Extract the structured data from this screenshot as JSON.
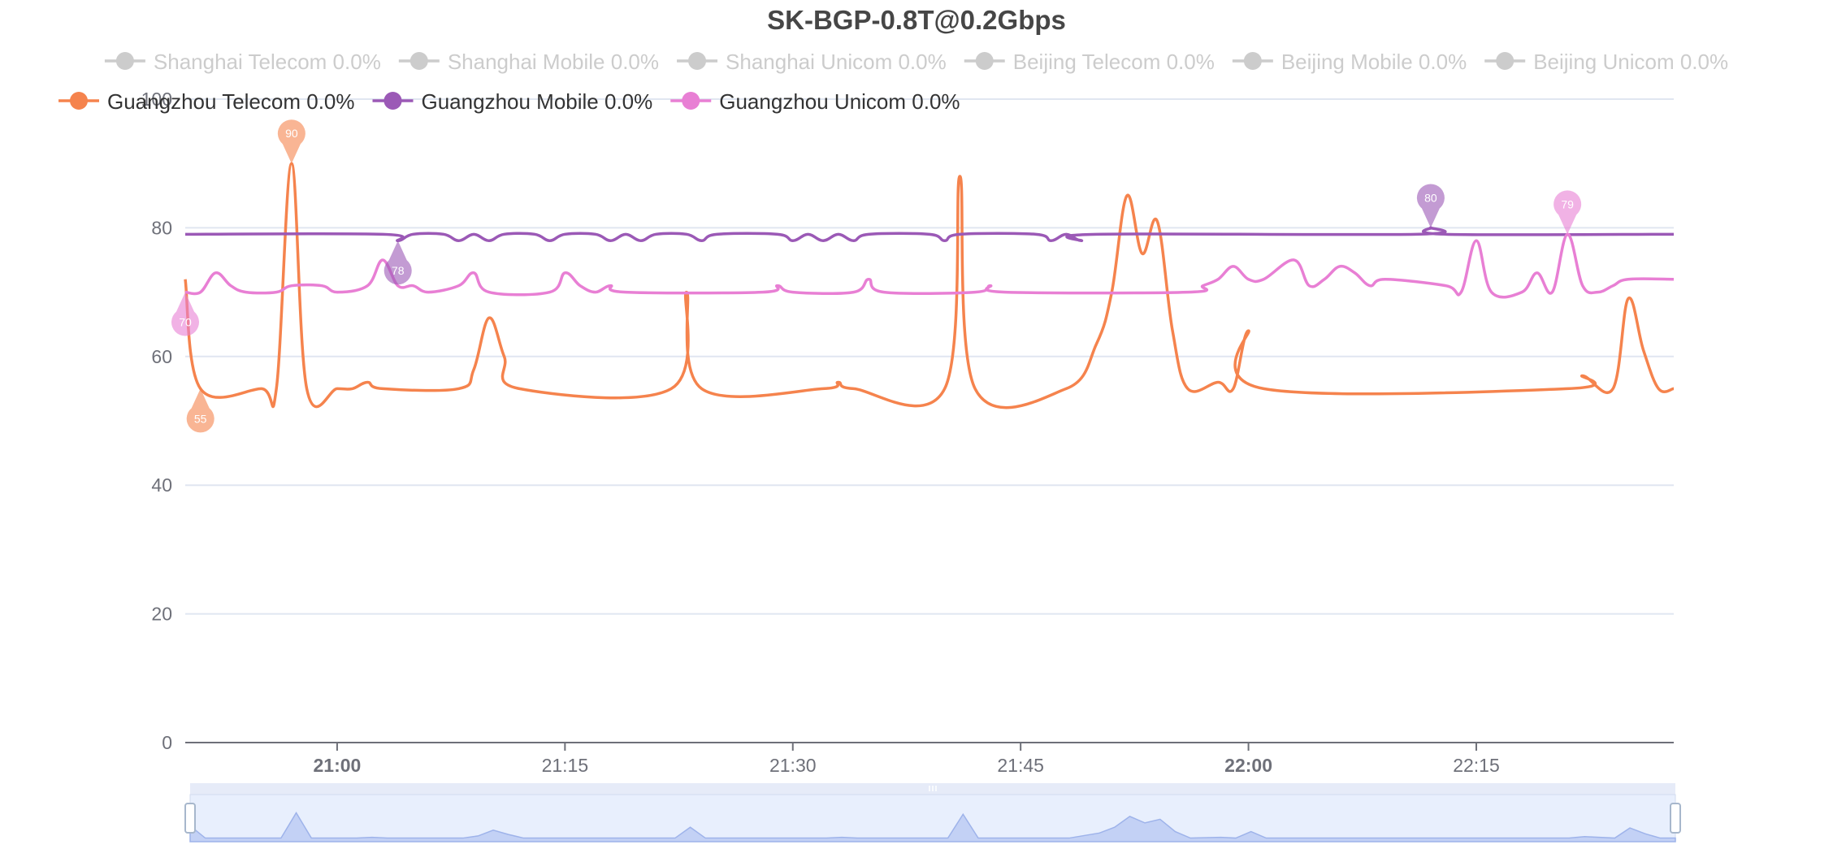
{
  "chart_data": {
    "type": "line",
    "title": "SK-BGP-0.8T@0.2Gbps",
    "xlabel": "",
    "ylabel": "",
    "ylim": [
      0,
      100
    ],
    "yticks": [
      0,
      20,
      40,
      60,
      80,
      100
    ],
    "x_unit": "minutes",
    "xlim": [
      "20:50",
      "22:28"
    ],
    "xticks": [
      {
        "t": "21:00",
        "label": "21:00",
        "bold": true
      },
      {
        "t": "21:15",
        "label": "21:15",
        "bold": false
      },
      {
        "t": "21:30",
        "label": "21:30",
        "bold": false
      },
      {
        "t": "21:45",
        "label": "21:45",
        "bold": false
      },
      {
        "t": "22:00",
        "label": "22:00",
        "bold": true
      },
      {
        "t": "22:15",
        "label": "22:15",
        "bold": false
      }
    ],
    "grid": true,
    "legend_placement": "top",
    "inactive_color": "#cccccc",
    "legend": [
      {
        "label": "Shanghai Telecom 0.0%",
        "active": false
      },
      {
        "label": "Shanghai Mobile 0.0%",
        "active": false
      },
      {
        "label": "Shanghai Unicom 0.0%",
        "active": false
      },
      {
        "label": "Beijing Telecom 0.0%",
        "active": false
      },
      {
        "label": "Beijing Mobile 0.0%",
        "active": false
      },
      {
        "label": "Beijing Unicom 0.0%",
        "active": false
      },
      {
        "label": "Guangzhou Telecom 0.0%",
        "active": true,
        "color": "#f5834d"
      },
      {
        "label": "Guangzhou Mobile 0.0%",
        "active": true,
        "color": "#9b59b6"
      },
      {
        "label": "Guangzhou Unicom 0.0%",
        "active": true,
        "color": "#e87fd4"
      }
    ],
    "series": [
      {
        "name": "Guangzhou Telecom 0.0%",
        "color": "#f5834d",
        "points": [
          [
            "20:50",
            72
          ],
          [
            "20:51",
            55
          ],
          [
            "20:55",
            55
          ],
          [
            "20:56",
            55
          ],
          [
            "20:57",
            90
          ],
          [
            "20:58",
            55
          ],
          [
            "21:00",
            55
          ],
          [
            "21:01",
            55
          ],
          [
            "21:02",
            56
          ],
          [
            "21:03",
            55
          ],
          [
            "21:08",
            55
          ],
          [
            "21:09",
            58
          ],
          [
            "21:10",
            66
          ],
          [
            "21:11",
            60
          ],
          [
            "21:12",
            55
          ],
          [
            "21:22",
            55
          ],
          [
            "21:23",
            70
          ],
          [
            "21:24",
            55
          ],
          [
            "21:32",
            55
          ],
          [
            "21:33",
            56
          ],
          [
            "21:34",
            55
          ],
          [
            "21:40",
            55
          ],
          [
            "21:41",
            88
          ],
          [
            "21:42",
            55
          ],
          [
            "21:48",
            55
          ],
          [
            "21:50",
            62
          ],
          [
            "21:51",
            70
          ],
          [
            "21:52",
            85
          ],
          [
            "21:53",
            76
          ],
          [
            "21:54",
            81
          ],
          [
            "21:55",
            64
          ],
          [
            "21:56",
            55
          ],
          [
            "21:58",
            56
          ],
          [
            "21:59",
            55
          ],
          [
            "22:00",
            64
          ],
          [
            "22:01",
            55
          ],
          [
            "22:21",
            55
          ],
          [
            "22:22",
            57
          ],
          [
            "22:24",
            55
          ],
          [
            "22:25",
            69
          ],
          [
            "22:26",
            61
          ],
          [
            "22:27",
            55
          ],
          [
            "22:28",
            55
          ]
        ],
        "markers": [
          {
            "t": "20:57",
            "value": 90,
            "kind": "max"
          },
          {
            "t": "20:51",
            "value": 55,
            "kind": "min"
          }
        ]
      },
      {
        "name": "Guangzhou Mobile 0.0%",
        "color": "#9b59b6",
        "points": [
          [
            "20:50",
            79
          ],
          [
            "21:03",
            79
          ],
          [
            "21:04",
            78
          ],
          [
            "21:05",
            79
          ],
          [
            "21:07",
            79
          ],
          [
            "21:08",
            78
          ],
          [
            "21:09",
            79
          ],
          [
            "21:10",
            78
          ],
          [
            "21:11",
            79
          ],
          [
            "21:13",
            79
          ],
          [
            "21:14",
            78
          ],
          [
            "21:15",
            79
          ],
          [
            "21:17",
            79
          ],
          [
            "21:18",
            78
          ],
          [
            "21:19",
            79
          ],
          [
            "21:20",
            78
          ],
          [
            "21:21",
            79
          ],
          [
            "21:23",
            79
          ],
          [
            "21:24",
            78
          ],
          [
            "21:25",
            79
          ],
          [
            "21:29",
            79
          ],
          [
            "21:30",
            78
          ],
          [
            "21:31",
            79
          ],
          [
            "21:32",
            78
          ],
          [
            "21:33",
            79
          ],
          [
            "21:34",
            78
          ],
          [
            "21:35",
            79
          ],
          [
            "21:39",
            79
          ],
          [
            "21:40",
            78
          ],
          [
            "21:41",
            79
          ],
          [
            "21:46",
            79
          ],
          [
            "21:47",
            78
          ],
          [
            "21:48",
            79
          ],
          [
            "21:49",
            78
          ],
          [
            "21:50",
            79
          ],
          [
            "22:11",
            79
          ],
          [
            "22:12",
            80
          ],
          [
            "22:13",
            79
          ],
          [
            "22:28",
            79
          ]
        ],
        "markers": [
          {
            "t": "22:12",
            "value": 80,
            "kind": "max"
          },
          {
            "t": "21:04",
            "value": 78,
            "kind": "min"
          }
        ]
      },
      {
        "name": "Guangzhou Unicom 0.0%",
        "color": "#e87fd4",
        "points": [
          [
            "20:50",
            70
          ],
          [
            "20:51",
            70
          ],
          [
            "20:52",
            73
          ],
          [
            "20:53",
            71
          ],
          [
            "20:54",
            70
          ],
          [
            "20:56",
            70
          ],
          [
            "20:57",
            71
          ],
          [
            "20:59",
            71
          ],
          [
            "21:00",
            70
          ],
          [
            "21:02",
            71
          ],
          [
            "21:03",
            75
          ],
          [
            "21:04",
            71
          ],
          [
            "21:05",
            71
          ],
          [
            "21:06",
            70
          ],
          [
            "21:08",
            71
          ],
          [
            "21:09",
            73
          ],
          [
            "21:10",
            70
          ],
          [
            "21:14",
            70
          ],
          [
            "21:15",
            73
          ],
          [
            "21:16",
            71
          ],
          [
            "21:17",
            70
          ],
          [
            "21:18",
            71
          ],
          [
            "21:19",
            70
          ],
          [
            "21:28",
            70
          ],
          [
            "21:29",
            71
          ],
          [
            "21:30",
            70
          ],
          [
            "21:34",
            70
          ],
          [
            "21:35",
            72
          ],
          [
            "21:36",
            70
          ],
          [
            "21:42",
            70
          ],
          [
            "21:43",
            71
          ],
          [
            "21:44",
            70
          ],
          [
            "21:56",
            70
          ],
          [
            "21:57",
            71
          ],
          [
            "21:58",
            72
          ],
          [
            "21:59",
            74
          ],
          [
            "22:00",
            72
          ],
          [
            "22:01",
            72
          ],
          [
            "22:03",
            75
          ],
          [
            "22:04",
            71
          ],
          [
            "22:05",
            72
          ],
          [
            "22:06",
            74
          ],
          [
            "22:07",
            73
          ],
          [
            "22:08",
            71
          ],
          [
            "22:09",
            72
          ],
          [
            "22:13",
            71
          ],
          [
            "22:14",
            70
          ],
          [
            "22:15",
            78
          ],
          [
            "22:16",
            70
          ],
          [
            "22:18",
            70
          ],
          [
            "22:19",
            73
          ],
          [
            "22:20",
            70
          ],
          [
            "22:21",
            79
          ],
          [
            "22:22",
            71
          ],
          [
            "22:23",
            70
          ],
          [
            "22:24",
            71
          ],
          [
            "22:25",
            72
          ],
          [
            "22:28",
            72
          ]
        ],
        "markers": [
          {
            "t": "22:21",
            "value": 79,
            "kind": "max"
          },
          {
            "t": "20:50",
            "value": 70,
            "kind": "min"
          }
        ]
      }
    ],
    "data_zoom": {
      "start": "20:50",
      "end": "22:28"
    }
  }
}
